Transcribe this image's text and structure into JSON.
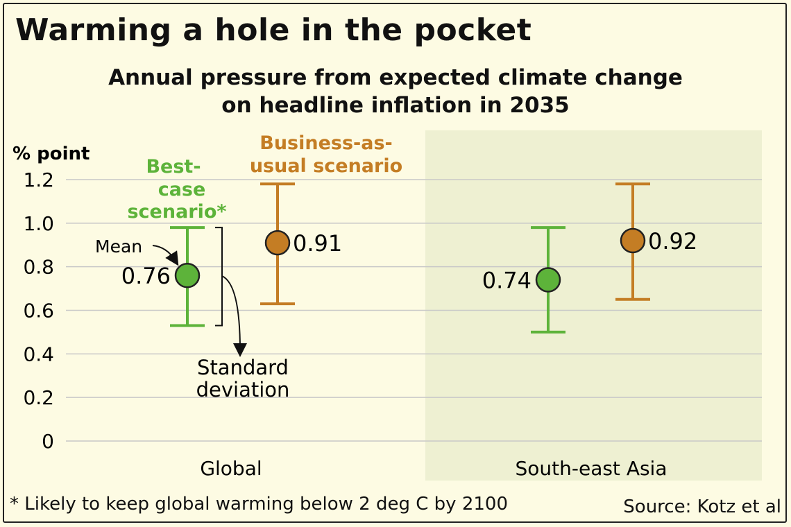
{
  "title": "Warming a hole in the pocket",
  "subtitle": [
    "Annual pressure from expected climate change",
    "on headline inflation in 2035"
  ],
  "footnote": "* Likely to keep global warming below 2 deg C by 2100",
  "source": "Source: Kotz et al",
  "colors": {
    "best": "#5db33a",
    "bau": "#c47d24",
    "panel": "#eef0d2",
    "grid": "#c8c8c8",
    "background": "#fdfbe3"
  },
  "annotations": {
    "mean": "Mean",
    "sd": [
      "Standard",
      "deviation"
    ]
  },
  "chart_data": {
    "type": "scatter",
    "ylabel": "% point",
    "ylim": [
      0,
      1.2
    ],
    "yticks": [
      "0",
      "0.2",
      "0.4",
      "0.6",
      "0.8",
      "1.0",
      "1.2"
    ],
    "categories": [
      "Global",
      "South-east Asia"
    ],
    "highlighted_category": "South-east Asia",
    "series": [
      {
        "name": "Best-case scenario*",
        "label_lines": [
          "Best-",
          "case",
          "scenario*"
        ],
        "color": "#5db33a",
        "means": [
          0.76,
          0.74
        ],
        "mean_labels": [
          "0.76",
          "0.74"
        ],
        "lower": [
          0.53,
          0.5
        ],
        "upper": [
          0.98,
          0.98
        ]
      },
      {
        "name": "Business-as-usual scenario",
        "label_lines": [
          "Business-as-",
          "usual scenario"
        ],
        "color": "#c47d24",
        "means": [
          0.91,
          0.92
        ],
        "mean_labels": [
          "0.91",
          "0.92"
        ],
        "lower": [
          0.63,
          0.65
        ],
        "upper": [
          1.18,
          1.18
        ]
      }
    ]
  }
}
